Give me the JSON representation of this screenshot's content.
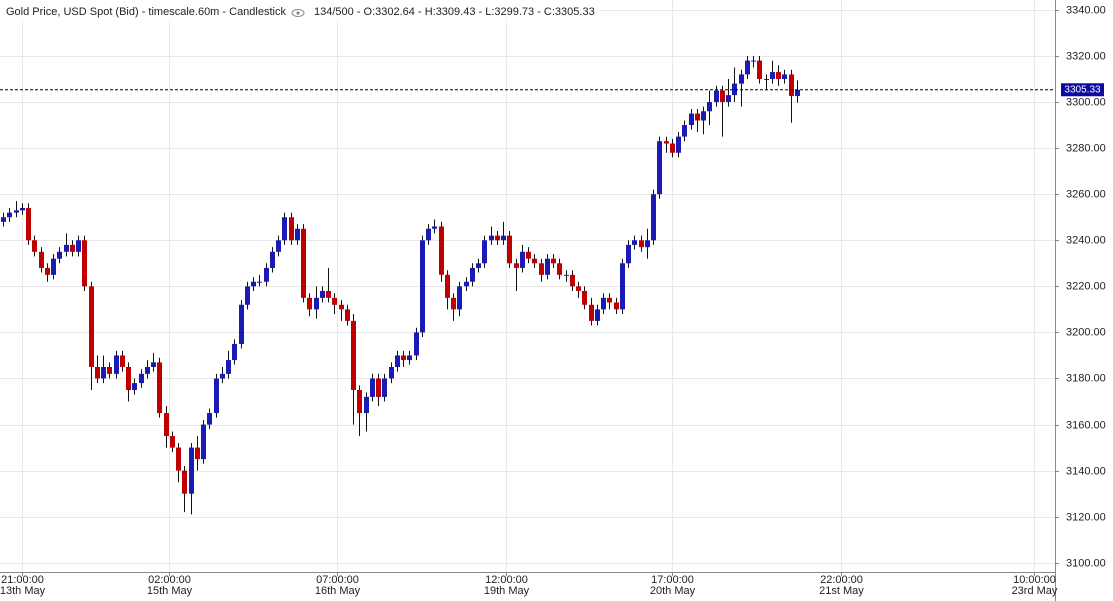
{
  "chart_data": {
    "type": "candlestick",
    "title": "Gold Price, USD Spot (Bid) - timescale.60m - Candlestick",
    "info": "134/500 - O:3302.64 - H:3309.43 - L:3299.73 - C:3305.33",
    "up_color": "#1a1ab4",
    "down_color": "#c00000",
    "grid": true,
    "ylim": [
      3096,
      3344.3
    ],
    "yticks": [
      {
        "value": 3100,
        "label": "3100.00"
      },
      {
        "value": 3120,
        "label": "3120.00"
      },
      {
        "value": 3140,
        "label": "3140.00"
      },
      {
        "value": 3160,
        "label": "3160.00"
      },
      {
        "value": 3180,
        "label": "3180.00"
      },
      {
        "value": 3200,
        "label": "3200.00"
      },
      {
        "value": 3220,
        "label": "3220.00"
      },
      {
        "value": 3240,
        "label": "3240.00"
      },
      {
        "value": 3260,
        "label": "3260.00"
      },
      {
        "value": 3280,
        "label": "3280.00"
      },
      {
        "value": 3300,
        "label": "3300.00"
      },
      {
        "value": 3320,
        "label": "3320.00"
      },
      {
        "value": 3340,
        "label": "3340.00"
      }
    ],
    "xlim": [
      -0.5,
      168.3
    ],
    "xticks": [
      {
        "value": 3,
        "label": [
          "21:00:00",
          "13th May"
        ]
      },
      {
        "value": 26.5,
        "label": [
          "02:00:00",
          "15th May"
        ]
      },
      {
        "value": 53.5,
        "label": [
          "07:00:00",
          "16th May"
        ]
      },
      {
        "value": 80.5,
        "label": [
          "12:00:00",
          "19th May"
        ]
      },
      {
        "value": 107,
        "label": [
          "17:00:00",
          "20th May"
        ]
      },
      {
        "value": 134,
        "label": [
          "22:00:00",
          "21st May"
        ]
      },
      {
        "value": 165,
        "label": [
          "10:00:00",
          "23rd May"
        ]
      }
    ],
    "open": [
      3248,
      3250,
      3252,
      3253,
      3254,
      3240,
      3235,
      3228,
      3225,
      3232,
      3235,
      3238,
      3235,
      3240,
      3220,
      3185,
      3180,
      3185,
      3182,
      3190,
      3185,
      3175,
      3178,
      3182,
      3185,
      3187,
      3165,
      3155,
      3150,
      3140,
      3130,
      3150,
      3145,
      3160,
      3165,
      3180,
      3182,
      3188,
      3195,
      3212,
      3220,
      3222,
      3222,
      3228,
      3235,
      3240,
      3250,
      3240,
      3245,
      3215,
      3210,
      3215,
      3218,
      3215,
      3212,
      3210,
      3205,
      3175,
      3165,
      3172,
      3180,
      3172,
      3180,
      3185,
      3190,
      3188,
      3190,
      3200,
      3240,
      3245,
      3246,
      3225,
      3215,
      3210,
      3220,
      3222,
      3228,
      3230,
      3240,
      3242,
      3240,
      3242,
      3230,
      3228,
      3235,
      3232,
      3230,
      3225,
      3232,
      3230,
      3225,
      3225,
      3220,
      3218,
      3212,
      3205,
      3210,
      3215,
      3213,
      3210,
      3230,
      3238,
      3240,
      3237,
      3240,
      3260,
      3283,
      3282,
      3278,
      3285,
      3290,
      3295,
      3292,
      3296,
      3300,
      3305,
      3300,
      3303,
      3308,
      3312,
      3318,
      3318,
      3310,
      3310,
      3313,
      3310,
      3312,
      3302.64
    ],
    "high": [
      3252,
      3254,
      3257,
      3256,
      3256,
      3242,
      3237,
      3230,
      3234,
      3237,
      3243,
      3240,
      3242,
      3242,
      3222,
      3190,
      3190,
      3187,
      3192,
      3192,
      3187,
      3180,
      3184,
      3188,
      3191,
      3189,
      3168,
      3157,
      3152,
      3142,
      3152,
      3155,
      3162,
      3167,
      3182,
      3185,
      3192,
      3197,
      3214,
      3222,
      3224,
      3225,
      3230,
      3237,
      3242,
      3252,
      3252,
      3247,
      3247,
      3217,
      3220,
      3220,
      3228,
      3217,
      3214,
      3212,
      3208,
      3177,
      3174,
      3182,
      3182,
      3182,
      3187,
      3192,
      3192,
      3192,
      3202,
      3242,
      3247,
      3249,
      3248,
      3227,
      3217,
      3222,
      3224,
      3230,
      3232,
      3242,
      3246,
      3244,
      3248,
      3244,
      3232,
      3238,
      3237,
      3234,
      3232,
      3234,
      3234,
      3232,
      3227,
      3227,
      3222,
      3220,
      3215,
      3212,
      3217,
      3217,
      3215,
      3232,
      3240,
      3242,
      3242,
      3245,
      3262,
      3285,
      3285,
      3284,
      3287,
      3292,
      3297,
      3297,
      3298,
      3305,
      3307,
      3307,
      3310,
      3315,
      3314,
      3320,
      3320,
      3320,
      3312,
      3318,
      3316,
      3314,
      3314,
      3309.43
    ],
    "low": [
      3246,
      3248,
      3250,
      3251,
      3238,
      3233,
      3226,
      3222,
      3223,
      3230,
      3233,
      3233,
      3233,
      3218,
      3175,
      3178,
      3178,
      3180,
      3180,
      3183,
      3170,
      3173,
      3176,
      3180,
      3183,
      3163,
      3150,
      3148,
      3135,
      3122,
      3121,
      3140,
      3143,
      3158,
      3163,
      3178,
      3180,
      3186,
      3193,
      3210,
      3218,
      3220,
      3220,
      3226,
      3233,
      3238,
      3238,
      3238,
      3213,
      3207,
      3206,
      3213,
      3213,
      3208,
      3205,
      3203,
      3160,
      3155,
      3157,
      3170,
      3168,
      3170,
      3178,
      3183,
      3185,
      3186,
      3188,
      3198,
      3238,
      3243,
      3222,
      3210,
      3205,
      3207,
      3218,
      3220,
      3226,
      3228,
      3238,
      3238,
      3238,
      3228,
      3218,
      3226,
      3230,
      3228,
      3222,
      3223,
      3228,
      3223,
      3222,
      3218,
      3215,
      3210,
      3203,
      3203,
      3208,
      3210,
      3208,
      3208,
      3228,
      3236,
      3235,
      3232,
      3238,
      3258,
      3278,
      3276,
      3276,
      3283,
      3288,
      3287,
      3286,
      3290,
      3298,
      3285,
      3298,
      3300,
      3298,
      3310,
      3315,
      3308,
      3305,
      3308,
      3307,
      3308,
      3291,
      3299.73
    ],
    "close": [
      3250,
      3252,
      3253,
      3254,
      3240,
      3235,
      3228,
      3225,
      3232,
      3235,
      3238,
      3235,
      3240,
      3220,
      3185,
      3180,
      3185,
      3182,
      3190,
      3185,
      3175,
      3178,
      3182,
      3185,
      3187,
      3165,
      3155,
      3150,
      3140,
      3130,
      3150,
      3145,
      3160,
      3165,
      3180,
      3182,
      3188,
      3195,
      3212,
      3220,
      3222,
      3222,
      3228,
      3235,
      3240,
      3250,
      3240,
      3245,
      3215,
      3210,
      3215,
      3218,
      3215,
      3212,
      3210,
      3205,
      3175,
      3165,
      3172,
      3180,
      3172,
      3180,
      3185,
      3190,
      3188,
      3190,
      3200,
      3240,
      3245,
      3246,
      3225,
      3215,
      3210,
      3220,
      3222,
      3228,
      3230,
      3240,
      3242,
      3240,
      3242,
      3230,
      3228,
      3235,
      3232,
      3230,
      3225,
      3232,
      3230,
      3225,
      3225,
      3220,
      3218,
      3212,
      3205,
      3210,
      3215,
      3213,
      3210,
      3230,
      3238,
      3240,
      3237,
      3240,
      3260,
      3283,
      3282,
      3278,
      3285,
      3290,
      3295,
      3292,
      3296,
      3300,
      3305,
      3300,
      3303,
      3308,
      3312,
      3318,
      3318,
      3310,
      3310,
      3313,
      3310,
      3312,
      3302.64,
      3305.33
    ]
  }
}
